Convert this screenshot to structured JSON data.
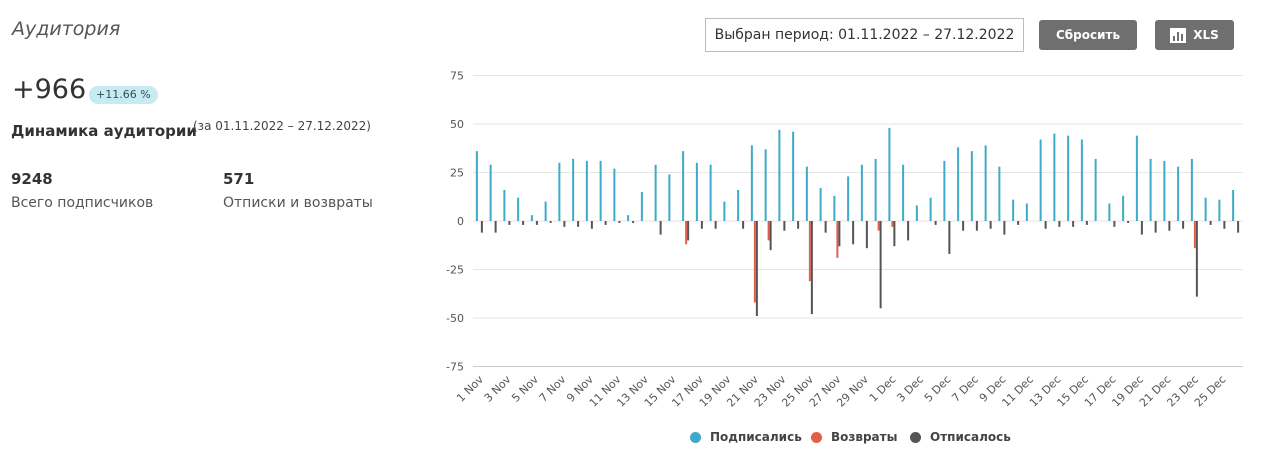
{
  "header": {
    "title": "Аудитория",
    "growth": "+966",
    "growth_badge": "+11.66 %",
    "dynamics_label": "Динамика аудитории",
    "dynamics_period": "(за 01.11.2022 – 27.12.2022)"
  },
  "stats": [
    {
      "value": "9248",
      "label": "Всего подписчиков"
    },
    {
      "value": "571",
      "label": "Отписки и возвраты"
    }
  ],
  "toolbar": {
    "period_label": "Выбран период: 01.11.2022 – 27.12.2022",
    "reset_label": "Сбросить",
    "xls_label": "XLS"
  },
  "colors": {
    "subscribed": "#3eaacb",
    "returns": "#e0604a",
    "unsubscribed": "#555555",
    "grid": "#e6e6e6"
  },
  "chart_data": {
    "type": "bar",
    "ylim": [
      -75,
      75
    ],
    "yticks": [
      75,
      50,
      25,
      0,
      -25,
      -50,
      -75
    ],
    "grid": true,
    "legend_position": "bottom-center",
    "categories": [
      "1 Nov",
      "2 Nov",
      "3 Nov",
      "4 Nov",
      "5 Nov",
      "6 Nov",
      "7 Nov",
      "8 Nov",
      "9 Nov",
      "10 Nov",
      "11 Nov",
      "12 Nov",
      "13 Nov",
      "14 Nov",
      "15 Nov",
      "16 Nov",
      "17 Nov",
      "18 Nov",
      "19 Nov",
      "20 Nov",
      "21 Nov",
      "22 Nov",
      "23 Nov",
      "24 Nov",
      "25 Nov",
      "26 Nov",
      "27 Nov",
      "28 Nov",
      "29 Nov",
      "30 Nov",
      "1 Dec",
      "2 Dec",
      "3 Dec",
      "4 Dec",
      "5 Dec",
      "6 Dec",
      "7 Dec",
      "8 Dec",
      "9 Dec",
      "10 Dec",
      "11 Dec",
      "12 Dec",
      "13 Dec",
      "14 Dec",
      "15 Dec",
      "16 Dec",
      "17 Dec",
      "18 Dec",
      "19 Dec",
      "20 Dec",
      "21 Dec",
      "22 Dec",
      "23 Dec",
      "24 Dec",
      "25 Dec",
      "26 Dec"
    ],
    "xtick_labels": [
      "1 Nov",
      "3 Nov",
      "5 Nov",
      "7 Nov",
      "9 Nov",
      "11 Nov",
      "13 Nov",
      "15 Nov",
      "17 Nov",
      "19 Nov",
      "21 Nov",
      "23 Nov",
      "25 Nov",
      "27 Nov",
      "29 Nov",
      "1 Dec",
      "3 Dec",
      "5 Dec",
      "7 Dec",
      "9 Dec",
      "11 Dec",
      "13 Dec",
      "15 Dec",
      "17 Dec",
      "19 Dec",
      "21 Dec",
      "23 Dec",
      "25 Dec"
    ],
    "series": [
      {
        "name": "Подписались",
        "values": [
          36,
          29,
          16,
          12,
          3,
          10,
          30,
          32,
          31,
          31,
          27,
          3,
          15,
          29,
          24,
          36,
          30,
          29,
          10,
          16,
          39,
          37,
          47,
          46,
          28,
          17,
          13,
          23,
          29,
          32,
          48,
          29,
          8,
          12,
          31,
          38,
          36,
          39,
          28,
          11,
          9,
          42,
          45,
          44,
          42,
          32,
          9,
          13,
          44,
          32,
          31,
          28,
          32,
          12,
          11,
          16
        ]
      },
      {
        "name": "Возвраты",
        "values": [
          0,
          0,
          0,
          0,
          0,
          0,
          0,
          0,
          0,
          0,
          0,
          0,
          0,
          0,
          0,
          -12,
          0,
          0,
          0,
          0,
          -42,
          -10,
          0,
          0,
          -31,
          0,
          -19,
          0,
          0,
          -5,
          -3,
          0,
          0,
          0,
          0,
          0,
          0,
          0,
          0,
          0,
          0,
          0,
          0,
          0,
          0,
          0,
          0,
          0,
          0,
          0,
          0,
          0,
          -14,
          0,
          0,
          0
        ]
      },
      {
        "name": "Отписалось",
        "values": [
          -6,
          -6,
          -2,
          -2,
          -2,
          -1,
          -3,
          -3,
          -4,
          -2,
          -1,
          -1,
          0,
          -7,
          0,
          -10,
          -4,
          -4,
          0,
          -4,
          -49,
          -15,
          -5,
          -4,
          -48,
          -6,
          -13,
          -12,
          -14,
          -45,
          -13,
          -10,
          0,
          -2,
          -17,
          -5,
          -5,
          -4,
          -7,
          -2,
          0,
          -4,
          -3,
          -3,
          -2,
          0,
          -3,
          -1,
          -7,
          -6,
          -5,
          -4,
          -39,
          -2,
          -4,
          -6
        ]
      }
    ]
  }
}
